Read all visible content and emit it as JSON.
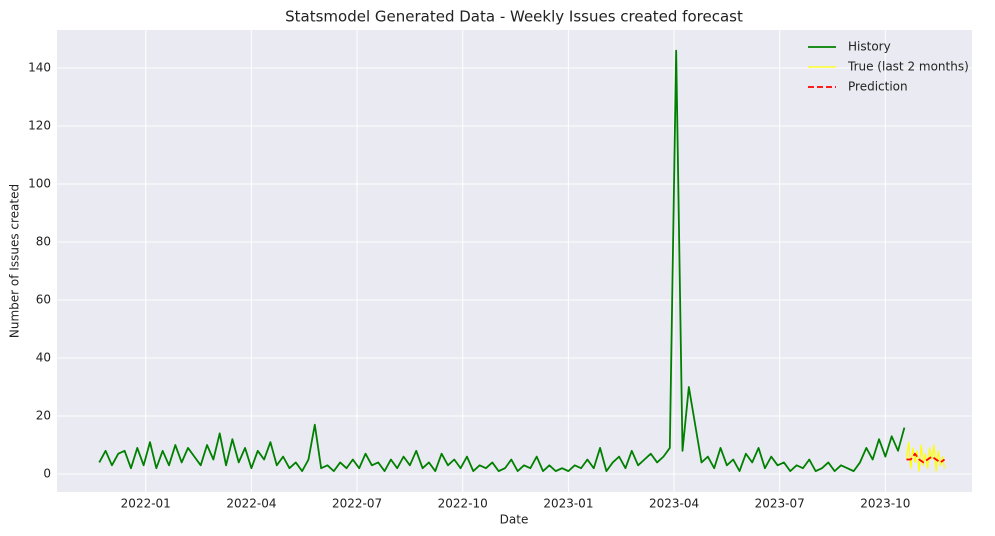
{
  "chart_data": {
    "type": "line",
    "title": "Statsmodel Generated Data - Weekly Issues created forecast",
    "xlabel": "Date",
    "ylabel": "Number of Issues created",
    "xlim": [
      2021.79,
      2023.955
    ],
    "ylim": [
      -6.2,
      153.1
    ],
    "xticks": [
      {
        "value": 2022,
        "label": "2022-01"
      },
      {
        "value": 2022.25,
        "label": "2022-04"
      },
      {
        "value": 2022.5,
        "label": "2022-07"
      },
      {
        "value": 2022.75,
        "label": "2022-10"
      },
      {
        "value": 2023,
        "label": "2023-01"
      },
      {
        "value": 2023.25,
        "label": "2023-04"
      },
      {
        "value": 2023.5,
        "label": "2023-07"
      },
      {
        "value": 2023.75,
        "label": "2023-10"
      }
    ],
    "yticks": [
      0,
      20,
      40,
      60,
      80,
      100,
      120,
      140
    ],
    "grid": true,
    "legend": "upper right",
    "series": [
      {
        "name": "History",
        "color": "#008000",
        "linestyle": "solid",
        "width": 1.8,
        "x": [
          2021.89,
          2021.905,
          2021.92,
          2021.935,
          2021.95,
          2021.965,
          2021.98,
          2021.995,
          2022.01,
          2022.025,
          2022.04,
          2022.055,
          2022.07,
          2022.085,
          2022.1,
          2022.115,
          2022.13,
          2022.145,
          2022.16,
          2022.175,
          2022.19,
          2022.205,
          2022.22,
          2022.235,
          2022.25,
          2022.265,
          2022.28,
          2022.295,
          2022.31,
          2022.325,
          2022.34,
          2022.355,
          2022.37,
          2022.385,
          2022.4,
          2022.415,
          2022.43,
          2022.445,
          2022.46,
          2022.475,
          2022.49,
          2022.505,
          2022.52,
          2022.535,
          2022.55,
          2022.565,
          2022.58,
          2022.595,
          2022.61,
          2022.625,
          2022.64,
          2022.655,
          2022.67,
          2022.685,
          2022.7,
          2022.715,
          2022.73,
          2022.745,
          2022.76,
          2022.775,
          2022.79,
          2022.805,
          2022.82,
          2022.835,
          2022.85,
          2022.865,
          2022.88,
          2022.895,
          2022.91,
          2022.925,
          2022.94,
          2022.955,
          2022.97,
          2022.985,
          2023.0,
          2023.015,
          2023.03,
          2023.045,
          2023.06,
          2023.075,
          2023.09,
          2023.105,
          2023.12,
          2023.135,
          2023.15,
          2023.165,
          2023.18,
          2023.195,
          2023.21,
          2023.225,
          2023.24,
          2023.255,
          2023.27,
          2023.285,
          2023.3,
          2023.315,
          2023.33,
          2023.345,
          2023.36,
          2023.375,
          2023.39,
          2023.405,
          2023.42,
          2023.435,
          2023.45,
          2023.465,
          2023.48,
          2023.495,
          2023.51,
          2023.525,
          2023.54,
          2023.555,
          2023.57,
          2023.585,
          2023.6,
          2023.615,
          2023.63,
          2023.645,
          2023.66,
          2023.675,
          2023.69,
          2023.705,
          2023.72,
          2023.735,
          2023.75,
          2023.765,
          2023.78,
          2023.795
        ],
        "values": [
          4,
          8,
          3,
          7,
          8,
          2,
          9,
          3,
          11,
          2,
          8,
          3,
          10,
          4,
          9,
          6,
          3,
          10,
          5,
          14,
          3,
          12,
          4,
          9,
          2,
          8,
          5,
          11,
          3,
          6,
          2,
          4,
          1,
          5,
          17,
          2,
          3,
          1,
          4,
          2,
          5,
          2,
          7,
          3,
          4,
          1,
          5,
          2,
          6,
          3,
          8,
          2,
          4,
          1,
          7,
          3,
          5,
          2,
          6,
          1,
          3,
          2,
          4,
          1,
          2,
          5,
          1,
          3,
          2,
          6,
          1,
          3,
          1,
          2,
          1,
          3,
          2,
          5,
          2,
          9,
          1,
          4,
          6,
          2,
          8,
          3,
          5,
          7,
          4,
          6,
          9,
          146,
          8,
          30,
          17,
          4,
          6,
          2,
          9,
          3,
          5,
          1,
          7,
          4,
          9,
          2,
          6,
          3,
          4,
          1,
          3,
          2,
          5,
          1,
          2,
          4,
          1,
          3,
          2,
          1,
          4,
          9,
          5,
          12,
          6,
          13,
          8,
          16
        ]
      },
      {
        "name": "True (last 2 months)",
        "color": "#ffff00",
        "linestyle": "solid",
        "width": 1.2,
        "x": [
          2023.8,
          2023.805,
          2023.81,
          2023.815,
          2023.82,
          2023.825,
          2023.83,
          2023.835,
          2023.84,
          2023.845,
          2023.85,
          2023.855,
          2023.86,
          2023.865,
          2023.87,
          2023.875,
          2023.88,
          2023.885,
          2023.89
        ],
        "values": [
          5,
          11,
          2,
          9,
          4,
          8,
          1,
          10,
          3,
          7,
          2,
          9,
          5,
          10,
          1,
          8,
          3,
          6,
          2
        ]
      },
      {
        "name": "Prediction",
        "color": "#ff0000",
        "linestyle": "dashed",
        "width": 1.8,
        "x": [
          2023.8,
          2023.81,
          2023.82,
          2023.83,
          2023.84,
          2023.85,
          2023.86,
          2023.87,
          2023.88,
          2023.89
        ],
        "values": [
          5,
          5,
          7,
          5,
          4,
          5,
          6,
          5,
          4,
          5
        ]
      }
    ]
  }
}
